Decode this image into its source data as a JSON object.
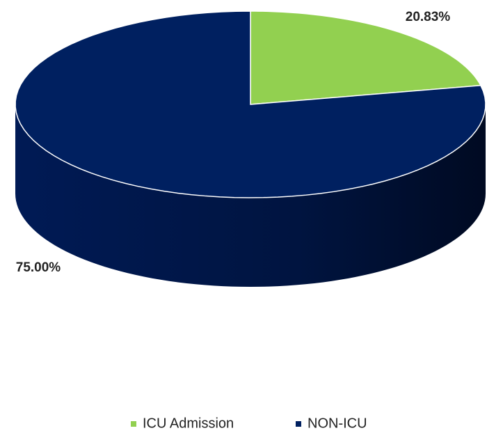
{
  "chart_data": {
    "type": "pie",
    "categories": [
      "ICU Admission",
      "NON-ICU"
    ],
    "values": [
      20.83,
      75.0
    ],
    "value_labels": [
      "20.83%",
      "75.00%"
    ],
    "colors": [
      "#92d050",
      "#002060"
    ],
    "legend": "bottom",
    "three_d": true
  }
}
